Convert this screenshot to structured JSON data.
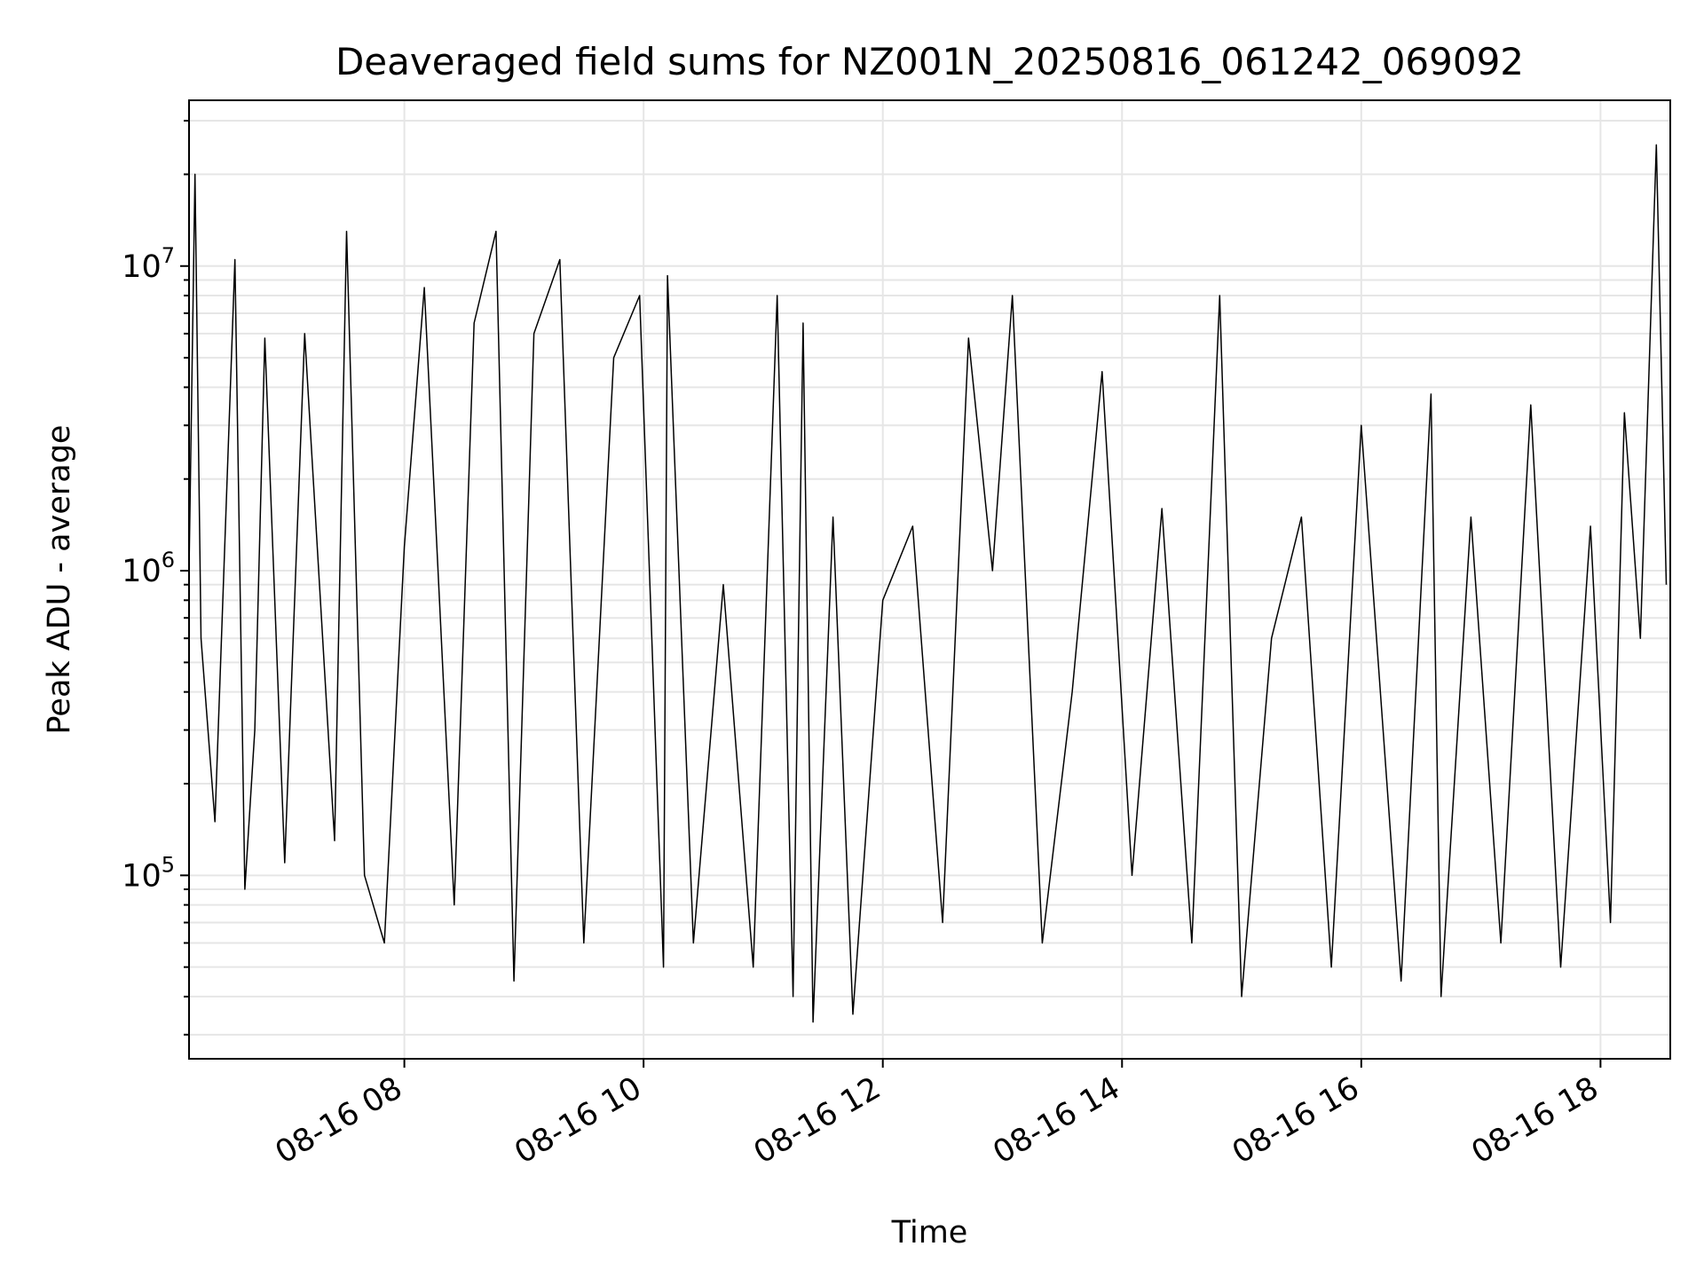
{
  "chart_data": {
    "type": "line",
    "title": "Deaveraged field sums for NZ001N_20250816_061242_069092",
    "xlabel": "Time",
    "ylabel": "Peak ADU - average",
    "yscale": "log",
    "xlim": [
      "2025-08-16 06:12",
      "2025-08-16 18:35"
    ],
    "ylim": [
      25000,
      35000000
    ],
    "grid": true,
    "x_ticks": [
      {
        "t": "2025-08-16 08:00",
        "label": "08-16 08"
      },
      {
        "t": "2025-08-16 10:00",
        "label": "08-16 10"
      },
      {
        "t": "2025-08-16 12:00",
        "label": "08-16 12"
      },
      {
        "t": "2025-08-16 14:00",
        "label": "08-16 14"
      },
      {
        "t": "2025-08-16 16:00",
        "label": "08-16 16"
      },
      {
        "t": "2025-08-16 18:00",
        "label": "08-16 18"
      }
    ],
    "y_ticks": [
      {
        "value": 100000,
        "base": "10",
        "exp": "5"
      },
      {
        "value": 1000000,
        "base": "10",
        "exp": "6"
      },
      {
        "value": 10000000,
        "base": "10",
        "exp": "7"
      }
    ],
    "series": [
      {
        "color": "#000000",
        "x": [
          "2025-08-16 06:12",
          "2025-08-16 06:15",
          "2025-08-16 06:18",
          "2025-08-16 06:25",
          "2025-08-16 06:35",
          "2025-08-16 06:40",
          "2025-08-16 06:45",
          "2025-08-16 06:50",
          "2025-08-16 07:00",
          "2025-08-16 07:10",
          "2025-08-16 07:25",
          "2025-08-16 07:31",
          "2025-08-16 07:40",
          "2025-08-16 07:50",
          "2025-08-16 08:00",
          "2025-08-16 08:10",
          "2025-08-16 08:25",
          "2025-08-16 08:35",
          "2025-08-16 08:46",
          "2025-08-16 08:55",
          "2025-08-16 09:05",
          "2025-08-16 09:18",
          "2025-08-16 09:30",
          "2025-08-16 09:45",
          "2025-08-16 09:58",
          "2025-08-16 10:10",
          "2025-08-16 10:12",
          "2025-08-16 10:25",
          "2025-08-16 10:40",
          "2025-08-16 10:55",
          "2025-08-16 11:07",
          "2025-08-16 11:15",
          "2025-08-16 11:20",
          "2025-08-16 11:25",
          "2025-08-16 11:35",
          "2025-08-16 11:45",
          "2025-08-16 12:00",
          "2025-08-16 12:15",
          "2025-08-16 12:30",
          "2025-08-16 12:43",
          "2025-08-16 12:55",
          "2025-08-16 13:05",
          "2025-08-16 13:20",
          "2025-08-16 13:35",
          "2025-08-16 13:50",
          "2025-08-16 14:05",
          "2025-08-16 14:20",
          "2025-08-16 14:35",
          "2025-08-16 14:49",
          "2025-08-16 15:00",
          "2025-08-16 15:15",
          "2025-08-16 15:30",
          "2025-08-16 15:45",
          "2025-08-16 16:00",
          "2025-08-16 16:20",
          "2025-08-16 16:35",
          "2025-08-16 16:40",
          "2025-08-16 16:55",
          "2025-08-16 17:10",
          "2025-08-16 17:25",
          "2025-08-16 17:40",
          "2025-08-16 17:55",
          "2025-08-16 18:05",
          "2025-08-16 18:12",
          "2025-08-16 18:20",
          "2025-08-16 18:28",
          "2025-08-16 18:33"
        ],
        "y": [
          1000000,
          20000000,
          600000,
          150000,
          10500000,
          90000,
          300000,
          5800000,
          110000,
          6000000,
          130000,
          13000000,
          100000,
          60000,
          1200000,
          8500000,
          80000,
          6500000,
          13000000,
          45000,
          6000000,
          10500000,
          60000,
          5000000,
          8000000,
          50000,
          9300000,
          60000,
          900000,
          50000,
          8000000,
          40000,
          6500000,
          33000,
          1500000,
          35000,
          800000,
          1400000,
          70000,
          5800000,
          1000000,
          8000000,
          60000,
          400000,
          4500000,
          100000,
          1600000,
          60000,
          8000000,
          40000,
          600000,
          1500000,
          50000,
          3000000,
          45000,
          3800000,
          40000,
          1500000,
          60000,
          3500000,
          50000,
          1400000,
          70000,
          3300000,
          600000,
          25000000,
          900000
        ]
      }
    ]
  }
}
